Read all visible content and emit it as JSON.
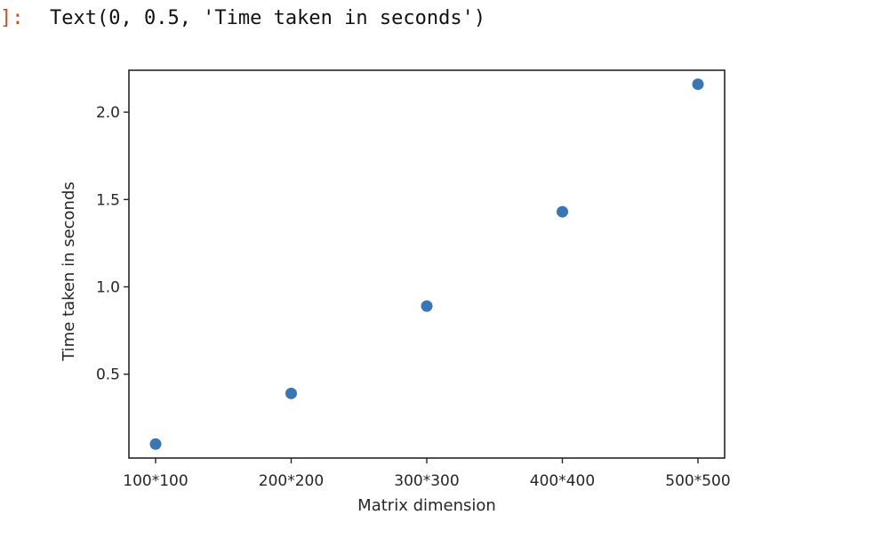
{
  "output": {
    "prompt_suffix": "]:",
    "text": "Text(0, 0.5, 'Time taken in seconds')"
  },
  "chart_data": {
    "type": "scatter",
    "title": "",
    "xlabel": "Matrix dimension",
    "ylabel": "Time taken in seconds",
    "categories": [
      "100*100",
      "200*200",
      "300*300",
      "400*400",
      "500*500"
    ],
    "values": [
      0.1,
      0.39,
      0.89,
      1.43,
      2.16
    ],
    "ylim": [
      0.02,
      2.24
    ],
    "yticks": [
      0.5,
      1.0,
      1.5,
      2.0
    ],
    "ytick_labels": [
      "0.5",
      "1.0",
      "1.5",
      "2.0"
    ],
    "grid": false,
    "marker_color": "#3a76b4"
  }
}
